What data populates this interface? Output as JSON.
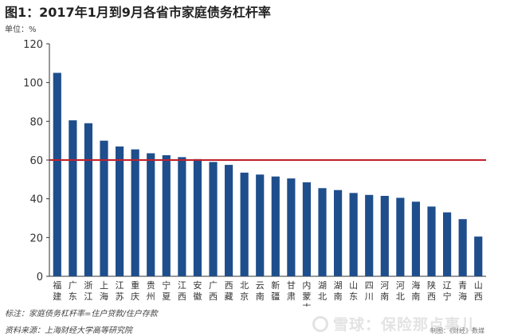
{
  "title": "图1：2017年1月到9月各省市家庭债务杠杆率",
  "unit": "单位：%",
  "note": "标注：家庭债务杠杆率=住户贷款/住户存款",
  "source": "资料来源：上海财经大学高等研究院",
  "credit": "制图：《财经》数媒",
  "watermark": "雪球：保险那点事儿",
  "colors": {
    "bar": "#1f4e8c",
    "reference_line": "#c0202a",
    "axis": "#333333"
  },
  "chart_data": {
    "type": "bar",
    "categories": [
      "福建",
      "广东",
      "浙江",
      "上海",
      "江苏",
      "重庆",
      "贵州",
      "宁夏",
      "江西",
      "安徽",
      "广西",
      "西藏",
      "北京",
      "云南",
      "新疆",
      "甘肃",
      "内蒙古",
      "湖北",
      "湖南",
      "山东",
      "四川",
      "河南",
      "河北",
      "海南",
      "陕西",
      "辽宁",
      "青海",
      "山西"
    ],
    "values": [
      105,
      80.5,
      79,
      70,
      67,
      65.5,
      63.5,
      62.5,
      61.5,
      60.5,
      59,
      57.5,
      53.5,
      52.5,
      51.5,
      50.5,
      48.5,
      45.5,
      44.5,
      43,
      42,
      41.5,
      40.5,
      38.5,
      36,
      33,
      29.5,
      20.5
    ],
    "ylim": [
      0,
      120
    ],
    "yticks": [
      0,
      20,
      40,
      60,
      80,
      100,
      120
    ],
    "reference_line": 60,
    "title": "",
    "xlabel": "",
    "ylabel": ""
  }
}
